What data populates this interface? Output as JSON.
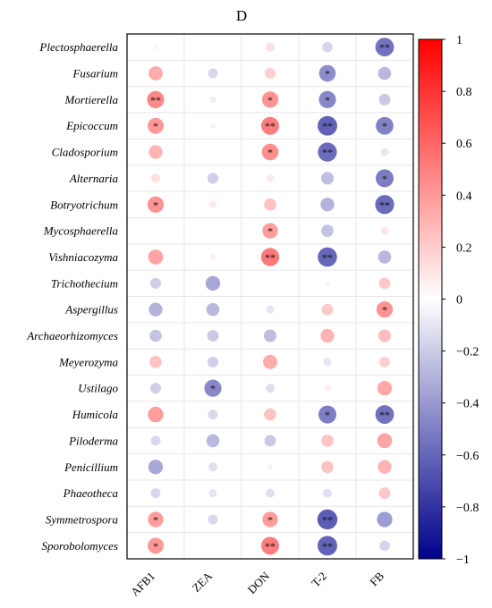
{
  "chart_data": {
    "type": "heatmap",
    "style": "correlation-circles",
    "title": "D",
    "rows": [
      "Plectosphaerella",
      "Fusarium",
      "Mortierella",
      "Epicoccum",
      "Cladosporium",
      "Alternaria",
      "Botryotrichum",
      "Mycosphaerella",
      "Vishniacozyma",
      "Trichothecium",
      "Aspergillus",
      "Archaeorhizomyces",
      "Meyerozyma",
      "Ustilago",
      "Humicola",
      "Piloderma",
      "Penicillium",
      "Phaeotheca",
      "Symmetrospora",
      "Sporobolomyces"
    ],
    "columns": [
      "AFB1",
      "ZEA",
      "DON",
      "T-2",
      "FB"
    ],
    "values": [
      [
        0.05,
        0.02,
        0.15,
        -0.2,
        -0.65
      ],
      [
        0.38,
        -0.18,
        0.22,
        -0.52,
        -0.32
      ],
      [
        0.55,
        -0.08,
        0.5,
        -0.55,
        -0.25
      ],
      [
        0.48,
        -0.05,
        0.6,
        -0.72,
        -0.58
      ],
      [
        0.35,
        0.0,
        0.52,
        -0.68,
        -0.12
      ],
      [
        0.15,
        -0.22,
        0.1,
        -0.3,
        -0.6
      ],
      [
        0.5,
        0.1,
        0.28,
        -0.35,
        -0.68
      ],
      [
        0.02,
        0.0,
        0.45,
        -0.28,
        0.12
      ],
      [
        0.42,
        0.08,
        0.62,
        -0.7,
        -0.32
      ],
      [
        -0.22,
        -0.4,
        0.0,
        -0.05,
        0.25
      ],
      [
        -0.35,
        -0.32,
        -0.12,
        0.25,
        0.5
      ],
      [
        -0.28,
        -0.25,
        -0.3,
        0.35,
        0.3
      ],
      [
        0.28,
        -0.22,
        0.38,
        -0.12,
        0.22
      ],
      [
        -0.22,
        -0.55,
        -0.15,
        0.08,
        0.4
      ],
      [
        0.45,
        -0.18,
        0.28,
        -0.6,
        -0.65
      ],
      [
        -0.18,
        -0.32,
        -0.25,
        0.28,
        0.42
      ],
      [
        -0.4,
        -0.15,
        -0.05,
        0.28,
        0.35
      ],
      [
        -0.18,
        -0.12,
        -0.15,
        -0.15,
        0.25
      ],
      [
        0.45,
        -0.18,
        0.45,
        -0.75,
        -0.45
      ],
      [
        0.48,
        0.02,
        0.6,
        -0.72,
        -0.2
      ]
    ],
    "significance": [
      [
        "",
        "",
        "",
        "",
        "**"
      ],
      [
        "",
        "",
        "",
        "*",
        ""
      ],
      [
        "**",
        "",
        "*",
        "*",
        ""
      ],
      [
        "*",
        "",
        "**",
        "**",
        "*"
      ],
      [
        "",
        "",
        "*",
        "**",
        ""
      ],
      [
        "",
        "",
        "",
        "",
        "*"
      ],
      [
        "*",
        "",
        "",
        "",
        "**"
      ],
      [
        "",
        "",
        "*",
        "",
        ""
      ],
      [
        "",
        "",
        "**",
        "**",
        ""
      ],
      [
        "",
        "",
        "",
        "",
        ""
      ],
      [
        "",
        "",
        "",
        "",
        "*"
      ],
      [
        "",
        "",
        "",
        "",
        ""
      ],
      [
        "",
        "",
        "",
        "",
        ""
      ],
      [
        "",
        "*",
        "",
        "",
        ""
      ],
      [
        "",
        "",
        "",
        "*",
        "**"
      ],
      [
        "",
        "",
        "",
        "",
        ""
      ],
      [
        "",
        "",
        "",
        "",
        ""
      ],
      [
        "",
        "",
        "",
        "",
        ""
      ],
      [
        "*",
        "",
        "*",
        "**",
        ""
      ],
      [
        "*",
        "",
        "**",
        "**",
        ""
      ]
    ],
    "color_scale": {
      "range": [
        -1,
        1
      ],
      "ticks": [
        1,
        0.8,
        0.6,
        0.4,
        0.2,
        0,
        -0.2,
        -0.4,
        -0.6,
        -0.8,
        -1
      ],
      "tick_labels": [
        "1",
        "0.8",
        "0.6",
        "0.4",
        "0.2",
        "0",
        "−0.2",
        "−0.4",
        "−0.6",
        "−0.8",
        "−1"
      ],
      "colors": {
        "negative": "#00008B",
        "mid": "#FFFFFF",
        "positive": "#FF0000"
      }
    },
    "grid": true,
    "legend": "right"
  }
}
